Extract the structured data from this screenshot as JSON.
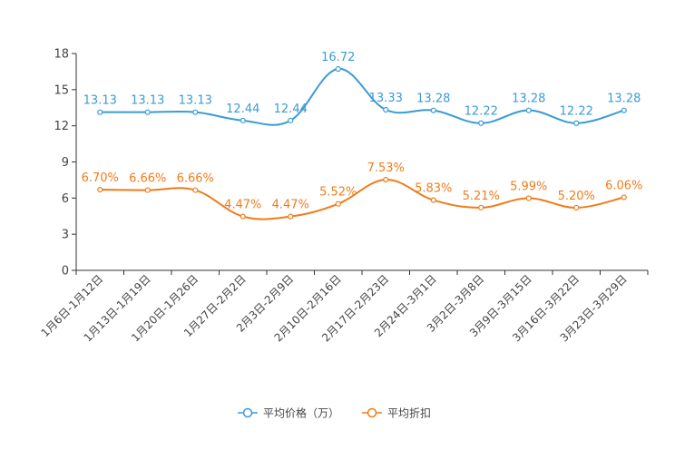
{
  "chart_data": {
    "type": "line",
    "categories": [
      "1月6日-1月12日",
      "1月13日-1月19日",
      "1月20日-1月26日",
      "1月27日-2月2日",
      "2月3日-2月9日",
      "2月10日-2月16日",
      "2月17日-2月23日",
      "2月24日-3月1日",
      "3月2日-3月8日",
      "3月9日-3月15日",
      "3月16日-3月22日",
      "3月23日-3月29日"
    ],
    "series": [
      {
        "name": "平均价格（万）",
        "color": "#3a9bd5",
        "values": [
          13.13,
          13.13,
          13.13,
          12.44,
          12.44,
          16.72,
          13.33,
          13.28,
          12.22,
          13.28,
          12.22,
          13.28
        ],
        "labels": [
          "13.13",
          "13.13",
          "13.13",
          "12.44",
          "12.44",
          "16.72",
          "13.33",
          "13.28",
          "12.22",
          "13.28",
          "12.22",
          "13.28"
        ]
      },
      {
        "name": "平均折扣",
        "color": "#f07c1a",
        "values": [
          6.7,
          6.66,
          6.66,
          4.47,
          4.47,
          5.52,
          7.53,
          5.83,
          5.21,
          5.99,
          5.2,
          6.06
        ],
        "labels": [
          "6.70%",
          "6.66%",
          "6.66%",
          "4.47%",
          "4.47%",
          "5.52%",
          "7.53%",
          "5.83%",
          "5.21%",
          "5.99%",
          "5.20%",
          "6.06%"
        ]
      }
    ],
    "yticks": [
      0,
      3,
      6,
      9,
      12,
      15,
      18
    ],
    "ylim": [
      0,
      18
    ],
    "xlabel": "",
    "ylabel": "",
    "grid": false,
    "legend_position": "bottom-center"
  }
}
